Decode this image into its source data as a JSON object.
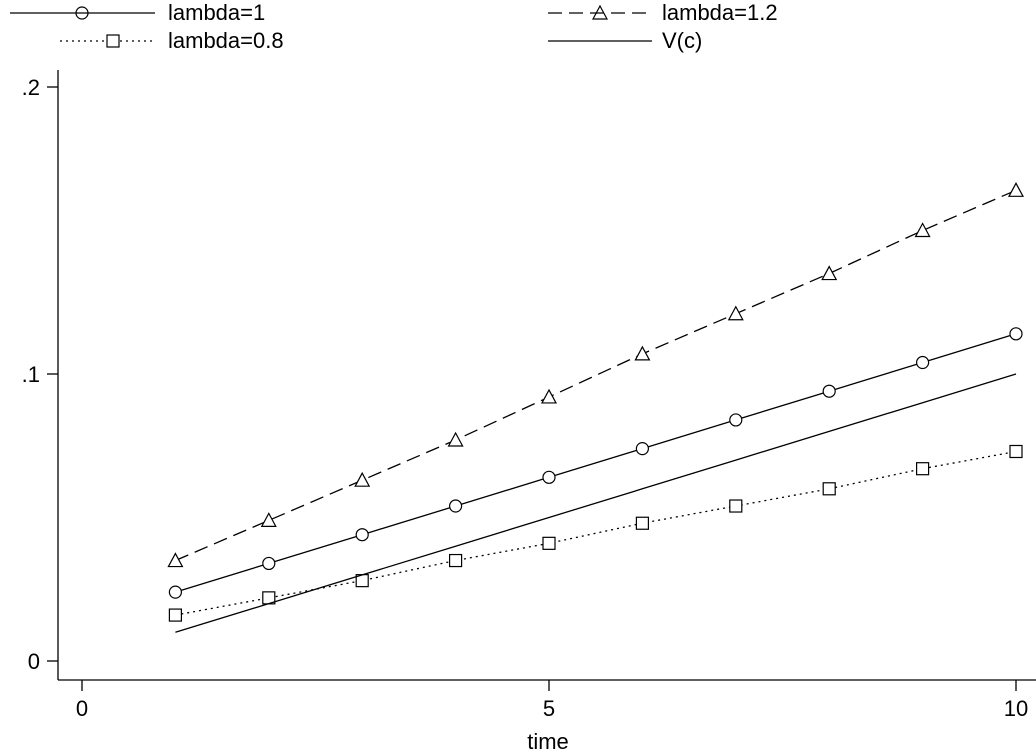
{
  "chart_data": {
    "type": "line",
    "title": "",
    "xlabel": "time",
    "ylabel": "",
    "xlim": [
      0,
      10
    ],
    "ylim": [
      0,
      0.2
    ],
    "x_ticks": [
      {
        "value": 0,
        "label": "0"
      },
      {
        "value": 5,
        "label": "5"
      },
      {
        "value": 10,
        "label": "10"
      }
    ],
    "y_ticks": [
      {
        "value": 0,
        "label": "0"
      },
      {
        "value": 0.1,
        "label": ".1"
      },
      {
        "value": 0.2,
        "label": ".2"
      }
    ],
    "grid": false,
    "legend_position": "top",
    "x": [
      1,
      2,
      3,
      4,
      5,
      6,
      7,
      8,
      9,
      10
    ],
    "series": [
      {
        "name": "lambda=1",
        "line_style": "solid",
        "marker": "circle",
        "values": [
          0.024,
          0.034,
          0.044,
          0.054,
          0.064,
          0.074,
          0.084,
          0.094,
          0.104,
          0.114
        ]
      },
      {
        "name": "lambda=1.2",
        "line_style": "dashed",
        "marker": "triangle",
        "values": [
          0.035,
          0.049,
          0.063,
          0.077,
          0.092,
          0.107,
          0.121,
          0.135,
          0.15,
          0.164
        ]
      },
      {
        "name": "lambda=0.8",
        "line_style": "dotted",
        "marker": "square",
        "values": [
          0.016,
          0.022,
          0.028,
          0.035,
          0.041,
          0.048,
          0.054,
          0.06,
          0.067,
          0.073
        ]
      },
      {
        "name": "V(c)",
        "line_style": "solid",
        "marker": "none",
        "values": [
          0.01,
          0.02,
          0.03,
          0.04,
          0.05,
          0.06,
          0.07,
          0.08,
          0.09,
          0.1
        ]
      }
    ]
  }
}
